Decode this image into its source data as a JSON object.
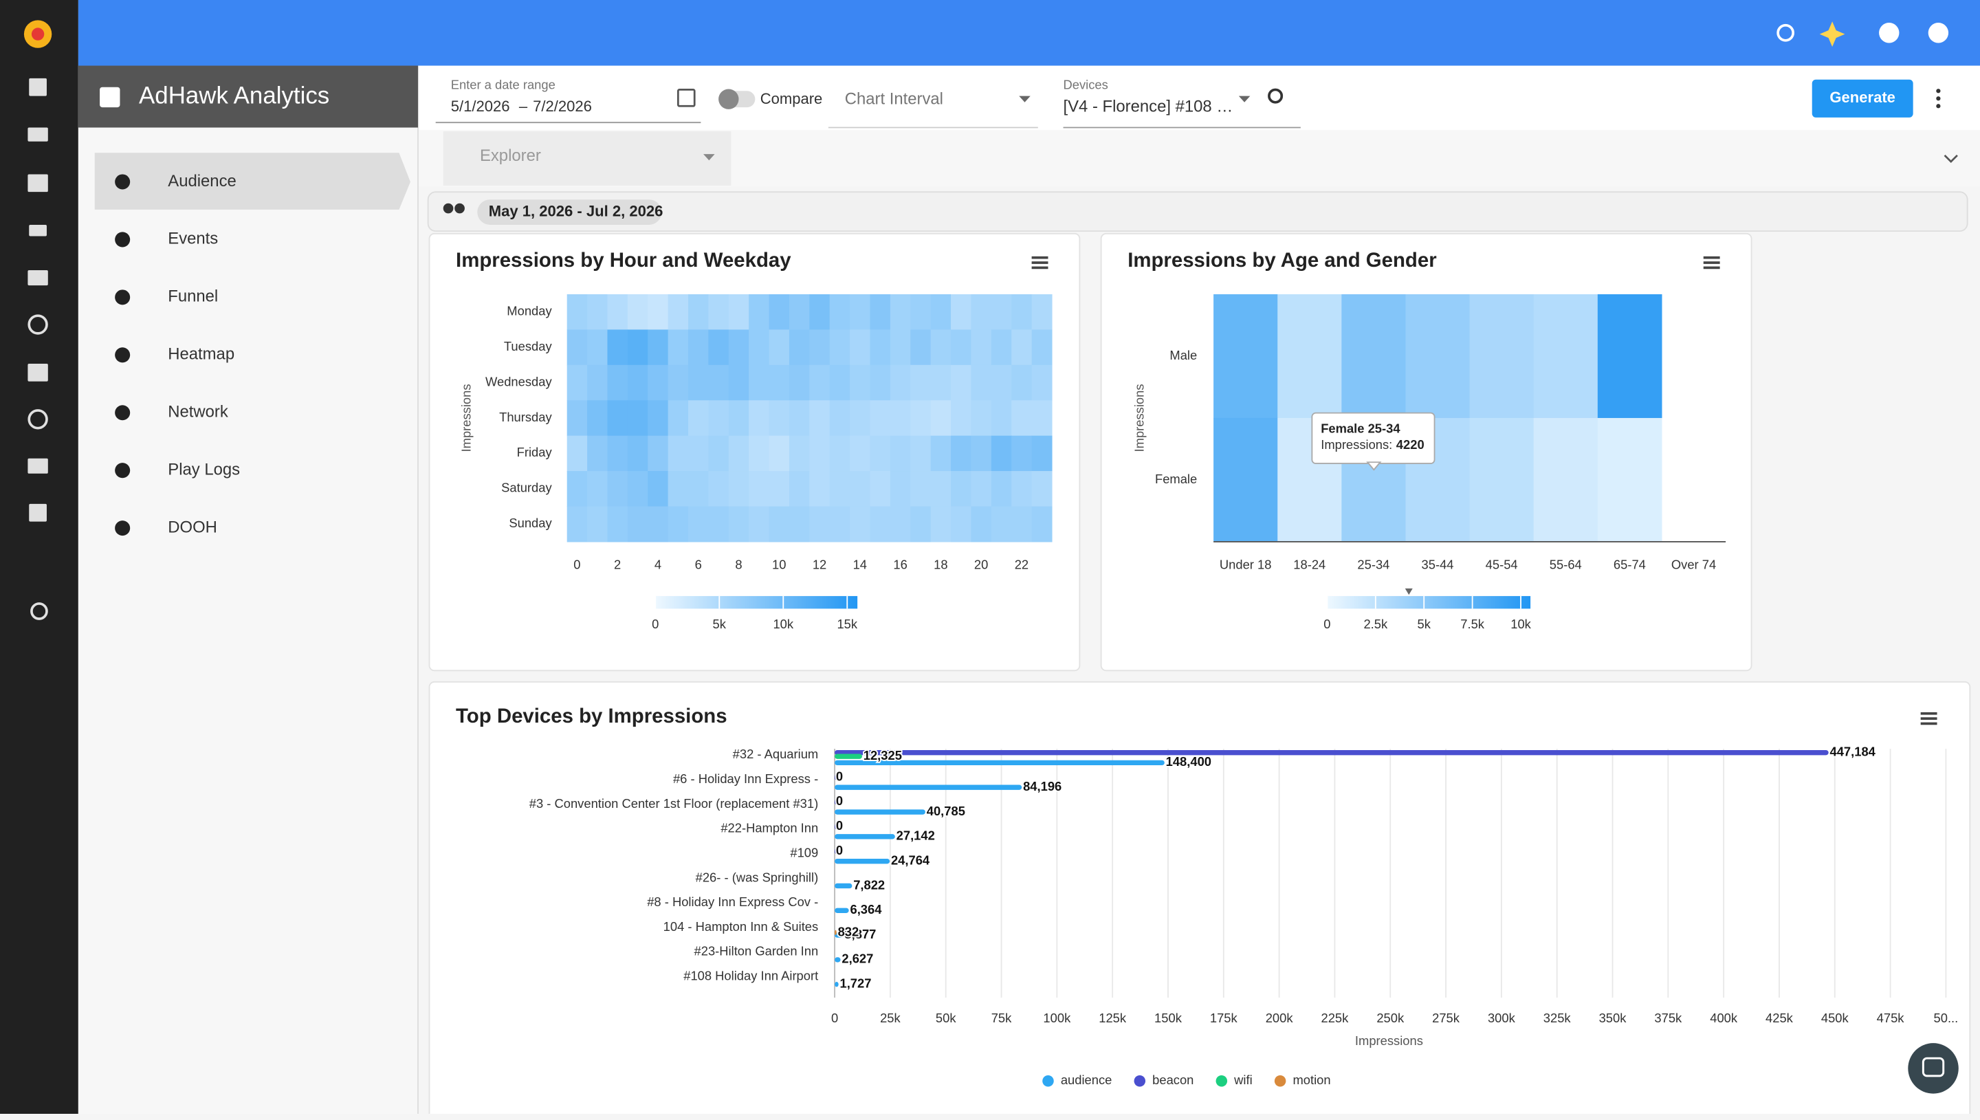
{
  "header": {
    "app_title": "AdHawk Analytics"
  },
  "nav": [
    "Audience",
    "Events",
    "Funnel",
    "Heatmap",
    "Network",
    "Play Logs",
    "DOOH"
  ],
  "toolbar": {
    "date_label": "Enter a date range",
    "date_start": "5/1/2026",
    "date_separator": "–",
    "date_end": "7/2/2026",
    "compare": "Compare",
    "chart_interval": "Chart Interval",
    "devices_label": "Devices",
    "devices_value": "[V4 - Florence] #108 …",
    "generate": "Generate",
    "explorer": "Explorer"
  },
  "range_chip": "May 1, 2026 - Jul 2, 2026",
  "chart_data": [
    {
      "type": "heatmap",
      "title": "Impressions by Hour and Weekday",
      "y_label": "Impressions",
      "rows": [
        "Monday",
        "Tuesday",
        "Wednesday",
        "Thursday",
        "Friday",
        "Saturday",
        "Sunday"
      ],
      "x": [
        0,
        1,
        2,
        3,
        4,
        5,
        6,
        7,
        8,
        9,
        10,
        11,
        12,
        13,
        14,
        15,
        16,
        17,
        18,
        19,
        20,
        21,
        22,
        23
      ],
      "xticks": [
        0,
        2,
        4,
        6,
        8,
        10,
        12,
        14,
        16,
        18,
        20,
        22
      ],
      "values": [
        [
          6000,
          5500,
          4500,
          3500,
          3000,
          4500,
          6000,
          5000,
          4500,
          7000,
          8500,
          7500,
          9000,
          7000,
          6500,
          8000,
          6000,
          6500,
          7000,
          4500,
          5500,
          5500,
          6000,
          5000
        ],
        [
          7500,
          7000,
          11000,
          11500,
          10000,
          7000,
          8000,
          9500,
          8500,
          7000,
          6000,
          8000,
          7500,
          6500,
          5500,
          7000,
          6000,
          7500,
          6000,
          6500,
          5500,
          6500,
          5000,
          6500
        ],
        [
          6500,
          7500,
          9000,
          9500,
          8500,
          7500,
          8000,
          8000,
          8500,
          7000,
          7000,
          7500,
          6500,
          7000,
          6000,
          6500,
          5500,
          5000,
          5000,
          4500,
          5500,
          5500,
          6000,
          5500
        ],
        [
          7500,
          9000,
          10500,
          10500,
          9500,
          6500,
          5000,
          5500,
          6000,
          4500,
          5000,
          5500,
          4500,
          5500,
          5000,
          4500,
          4500,
          4000,
          3500,
          4500,
          5000,
          5500,
          4500,
          4500
        ],
        [
          5000,
          7500,
          8500,
          9000,
          7500,
          5500,
          5500,
          6000,
          5000,
          4000,
          3500,
          5000,
          4500,
          5000,
          4500,
          5000,
          5500,
          5000,
          6500,
          8000,
          7500,
          9500,
          8500,
          9000
        ],
        [
          7000,
          6500,
          7500,
          8000,
          9000,
          6000,
          6000,
          5500,
          5000,
          4500,
          4500,
          5500,
          4500,
          5000,
          5000,
          4500,
          5500,
          5000,
          5000,
          6000,
          5500,
          6500,
          5500,
          5000
        ],
        [
          6500,
          6000,
          7000,
          7500,
          7500,
          7000,
          6500,
          6500,
          6000,
          5500,
          6000,
          6000,
          5500,
          5500,
          5000,
          5500,
          5500,
          6000,
          5000,
          5500,
          6500,
          6000,
          6000,
          6500
        ]
      ],
      "zlim": [
        0,
        15800
      ],
      "zticks": [
        0,
        {
          "value": 5000,
          "label": "5k"
        },
        {
          "value": 10000,
          "label": "10k"
        },
        {
          "value": 15000,
          "label": "15k"
        }
      ],
      "color_low": "#eef8ff",
      "color_high": "#2196f3"
    },
    {
      "type": "heatmap",
      "title": "Impressions by Age and Gender",
      "y_label": "Impressions",
      "rows": [
        "Male",
        "Female"
      ],
      "x": [
        "Under 18",
        "18-24",
        "25-34",
        "35-44",
        "45-54",
        "55-64",
        "65-74",
        "Over 74"
      ],
      "values": [
        [
          7000,
          2500,
          5500,
          4500,
          3500,
          3000,
          9500,
          null
        ],
        [
          7500,
          1500,
          4220,
          3000,
          2500,
          1500,
          1000,
          null
        ]
      ],
      "zlim": [
        0,
        10500
      ],
      "zticks": [
        0,
        {
          "value": 2500,
          "label": "2.5k"
        },
        {
          "value": 5000,
          "label": "5k"
        },
        {
          "value": 7500,
          "label": "7.5k"
        },
        {
          "value": 10000,
          "label": "10k"
        }
      ],
      "color_low": "#eef8ff",
      "color_high": "#2196f3",
      "tooltip": {
        "title": "Female 25-34",
        "label": "Impressions:",
        "value": 4220
      }
    },
    {
      "type": "bar",
      "orientation": "horizontal",
      "title": "Top Devices by Impressions",
      "x_label": "Impressions",
      "categories": [
        "#32 - Aquarium",
        "#6 - Holiday Inn Express -",
        "#3 - Convention Center 1st Floor (replacement #31)",
        "#22-Hampton Inn",
        "#109",
        "#26- - (was Springhill)",
        "#8 - Holiday Inn Express Cov -",
        "104 - Hampton Inn & Suites",
        "#23-Hilton Garden Inn",
        "#108 Holiday Inn Airport"
      ],
      "series": [
        {
          "name": "audience",
          "color": "#2ea7f2",
          "values": [
            148400,
            84196,
            40785,
            27142,
            24764,
            7822,
            6364,
            3877,
            2627,
            1727
          ],
          "value_labels": [
            "148,400",
            "84,196",
            "40,785",
            "27,142",
            "24,764",
            "7,822",
            "6,364",
            "3,877",
            "2,627",
            "1,727"
          ]
        },
        {
          "name": "beacon",
          "color": "#4a4fcf",
          "values": [
            447184,
            0,
            0,
            0,
            0,
            null,
            null,
            null,
            null,
            null
          ],
          "value_labels": [
            "447,184",
            "0",
            "0",
            "0",
            "0",
            null,
            null,
            null,
            null,
            null
          ]
        },
        {
          "name": "wifi",
          "color": "#1ccf80",
          "values": [
            12325,
            null,
            null,
            null,
            null,
            null,
            null,
            null,
            null,
            null
          ],
          "value_labels": [
            "12,325",
            null,
            null,
            null,
            null,
            null,
            null,
            null,
            null,
            null
          ]
        },
        {
          "name": "motion",
          "color": "#d98a3c",
          "values": [
            null,
            null,
            null,
            null,
            null,
            null,
            null,
            832,
            null,
            null
          ],
          "value_labels": [
            null,
            null,
            null,
            null,
            null,
            null,
            null,
            "832",
            null,
            null
          ]
        }
      ],
      "xlim": [
        0,
        500000
      ],
      "xticks": [
        0,
        {
          "value": 25000,
          "label": "25k"
        },
        {
          "value": 50000,
          "label": "50k"
        },
        {
          "value": 75000,
          "label": "75k"
        },
        {
          "value": 100000,
          "label": "100k"
        },
        {
          "value": 125000,
          "label": "125k"
        },
        {
          "value": 150000,
          "label": "150k"
        },
        {
          "value": 175000,
          "label": "175k"
        },
        {
          "value": 200000,
          "label": "200k"
        },
        {
          "value": 225000,
          "label": "225k"
        },
        {
          "value": 250000,
          "label": "250k"
        },
        {
          "value": 275000,
          "label": "275k"
        },
        {
          "value": 300000,
          "label": "300k"
        },
        {
          "value": 325000,
          "label": "325k"
        },
        {
          "value": 350000,
          "label": "350k"
        },
        {
          "value": 375000,
          "label": "375k"
        },
        {
          "value": 400000,
          "label": "400k"
        },
        {
          "value": 425000,
          "label": "425k"
        },
        {
          "value": 450000,
          "label": "450k"
        },
        {
          "value": 475000,
          "label": "475k"
        },
        {
          "value": 500000,
          "label": "50..."
        }
      ],
      "grid": true,
      "legend": "bottom"
    }
  ]
}
